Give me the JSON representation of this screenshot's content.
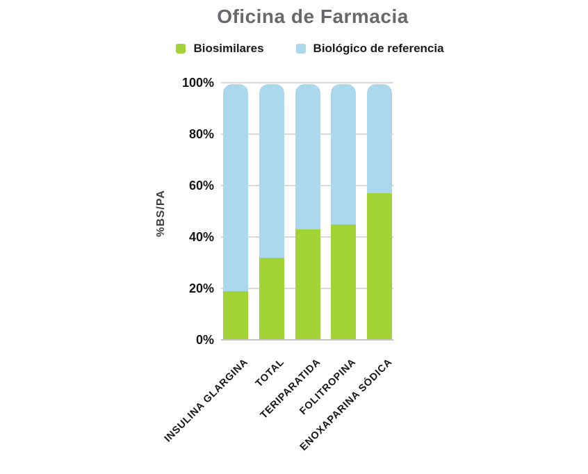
{
  "chart_data": {
    "type": "bar",
    "stacked": true,
    "title": "Oficina de Farmacia",
    "ylabel": "%BS/PA",
    "xlabel": "",
    "categories": [
      "INSULINA GLARGINA",
      "TOTAL",
      "TERIPARATIDA",
      "FOLITROPINA",
      "ENOXAPARINA SÓDICA"
    ],
    "series": [
      {
        "name": "Biosimilares",
        "color": "#A2D437",
        "values": [
          19,
          32,
          43,
          45,
          57
        ]
      },
      {
        "name": "Biológico de referencia",
        "color": "#ACD8ED",
        "values": [
          81,
          68,
          57,
          55,
          43
        ]
      }
    ],
    "ylim": [
      0,
      100
    ],
    "ytick_labels": [
      "0%",
      "20%",
      "40%",
      "60%",
      "80%",
      "100%"
    ],
    "ytick_values": [
      0,
      20,
      40,
      60,
      80,
      100
    ],
    "grid": true,
    "legend_position": "top"
  },
  "colors": {
    "title_text": "#66686B",
    "tick_text": "#161616",
    "gridline": "#D9D9D9",
    "axis_line": "#C4C4C4",
    "background": "#FFFFFF"
  }
}
